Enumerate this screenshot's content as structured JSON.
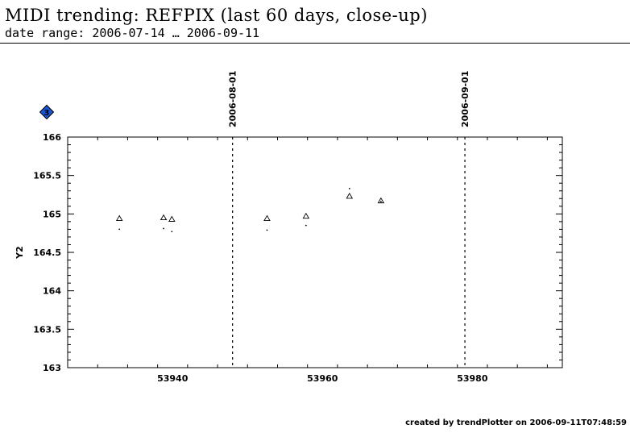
{
  "header": {
    "title": "MIDI trending: REFPIX (last 60 days, close-up)",
    "subtitle": "date range: 2006-07-14 … 2006-09-11"
  },
  "footer": {
    "credit": "created by trendPlotter on 2006-09-11T07:48:59"
  },
  "badge": {
    "label": "3",
    "color": "#1a56d6",
    "icon": "diamond-badge-icon"
  },
  "chart_data": {
    "type": "scatter",
    "ylabel": "Y2",
    "xlabel": "",
    "xlim": [
      53926,
      53992
    ],
    "ylim": [
      163,
      166
    ],
    "xticks": [
      53940,
      53960,
      53980
    ],
    "yticks": [
      163,
      163.5,
      164,
      164.5,
      165,
      165.5,
      166
    ],
    "ytick_labels": [
      "163",
      "163.5",
      "164",
      "164.5",
      "165",
      "165.5",
      "166"
    ],
    "grid": false,
    "series": [
      {
        "marker": "triangle",
        "points": [
          {
            "x": 53932.9,
            "y": 164.94
          },
          {
            "x": 53938.8,
            "y": 164.95
          },
          {
            "x": 53939.9,
            "y": 164.93
          },
          {
            "x": 53952.6,
            "y": 164.94
          },
          {
            "x": 53957.8,
            "y": 164.97
          },
          {
            "x": 53963.6,
            "y": 165.23
          },
          {
            "x": 53967.8,
            "y": 165.17
          }
        ]
      },
      {
        "marker": "dot",
        "points": [
          {
            "x": 53932.9,
            "y": 164.8
          },
          {
            "x": 53938.8,
            "y": 164.81
          },
          {
            "x": 53939.9,
            "y": 164.77
          },
          {
            "x": 53952.6,
            "y": 164.79
          },
          {
            "x": 53957.8,
            "y": 164.85
          },
          {
            "x": 53963.6,
            "y": 165.33
          },
          {
            "x": 53967.8,
            "y": 165.16
          }
        ]
      }
    ],
    "date_markers": [
      {
        "x": 53948,
        "label": "2006-08-01"
      },
      {
        "x": 53979,
        "label": "2006-09-01"
      }
    ]
  }
}
